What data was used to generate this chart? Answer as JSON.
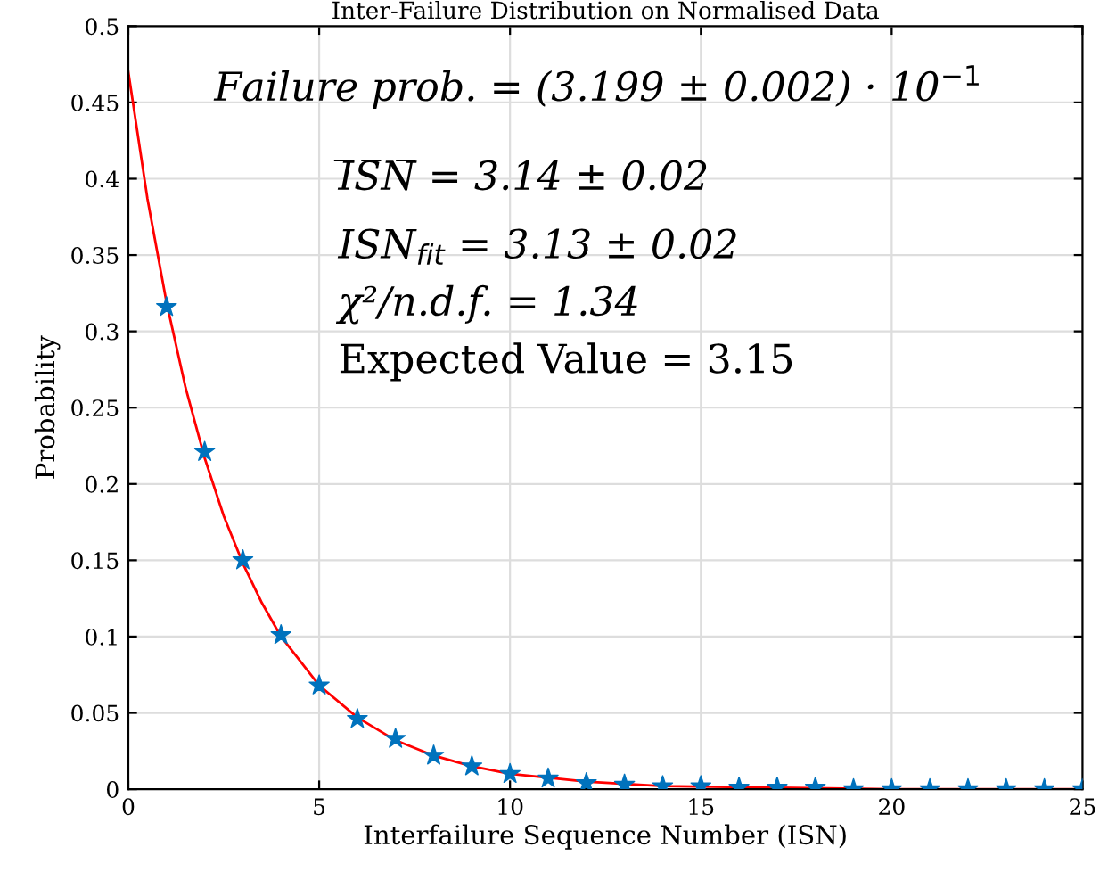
{
  "chart_data": {
    "type": "scatter",
    "title": "Inter-Failure Distribution on Normalised Data",
    "xlabel": "Interfailure Sequence Number (ISN)",
    "ylabel": "Probability",
    "annotations": [
      "Failure prob. = (3.199 ± 0.002) · 10$^{−1}$",
      "I̅S̅N̅ = 3.14 ± 0.02",
      "ISN$_{fit}$ = 3.13 ± 0.02",
      "χ²/n.d.f. = 1.34",
      "Expected Value = 3.15"
    ],
    "series": [
      {
        "type": "line",
        "color": "#ff0000",
        "marker": "none",
        "line_style": "solid",
        "x": [
          0,
          0.5,
          1,
          1.5,
          2,
          2.5,
          3,
          3.5,
          4,
          5,
          6,
          7,
          8,
          9,
          10,
          12,
          14,
          17,
          20,
          25
        ],
        "values": [
          0.47,
          0.387,
          0.319,
          0.263,
          0.217,
          0.179,
          0.148,
          0.122,
          0.1,
          0.068,
          0.047,
          0.032,
          0.022,
          0.015,
          0.01,
          0.005,
          0.002,
          0.001,
          0,
          0
        ]
      },
      {
        "color": "#0072bd",
        "marker": "star",
        "x": [
          1,
          2,
          3,
          4,
          5,
          6,
          7,
          8,
          9,
          10,
          11,
          12,
          13,
          14,
          15,
          16,
          17,
          18,
          19,
          20,
          21,
          22,
          23,
          24,
          25
        ],
        "values": [
          0.316,
          0.221,
          0.15,
          0.101,
          0.068,
          0.046,
          0.033,
          0.022,
          0.015,
          0.01,
          0.007,
          0.004,
          0.003,
          0.002,
          0.002,
          0.001,
          0.001,
          0.001,
          0,
          0,
          0,
          0,
          0,
          0,
          0
        ]
      }
    ],
    "xlim": [
      0,
      25
    ],
    "xticks": [
      0,
      5,
      10,
      15,
      20,
      25
    ],
    "ylim": [
      0,
      0.5
    ],
    "yticks": [
      0,
      0.05,
      0.1,
      0.15,
      0.2,
      0.25,
      0.3,
      0.35,
      0.4,
      0.45,
      0.5
    ],
    "grid": true
  }
}
